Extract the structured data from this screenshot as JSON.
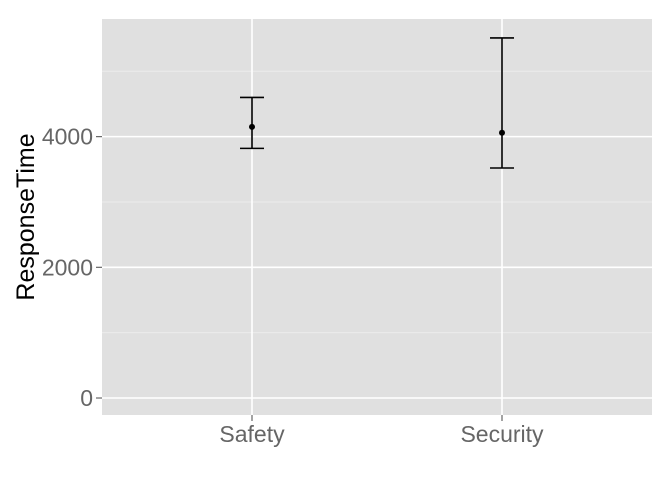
{
  "chart_data": {
    "type": "scatter",
    "title": "",
    "xlabel": "",
    "ylabel": "ResponseTime",
    "categories": [
      "Safety",
      "Security"
    ],
    "points": [
      {
        "category": "Safety",
        "y": 4150,
        "ymin": 3820,
        "ymax": 4600
      },
      {
        "category": "Security",
        "y": 4060,
        "ymin": 3520,
        "ymax": 5510
      }
    ],
    "ylim": [
      -260,
      5800
    ],
    "yticks": [
      0,
      2000,
      4000
    ],
    "ytick_labels": [
      "0",
      "2000",
      "4000"
    ],
    "minor_yticks": [
      1000,
      3000,
      5000
    ],
    "grid": true,
    "legend": "none",
    "colors": {
      "panel_background": "#e0e0e0",
      "major_grid": "#ffffff",
      "minor_grid": "#ececec",
      "marks": "#000000",
      "tick_label": "#666666",
      "axis_title": "#000000"
    }
  }
}
